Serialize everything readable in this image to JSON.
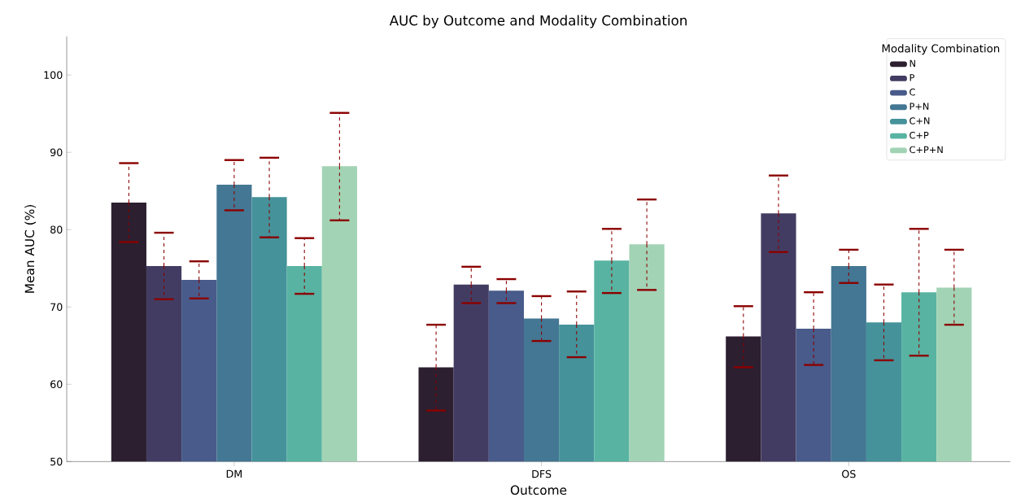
{
  "chart_data": {
    "type": "bar",
    "title": "AUC by Outcome and Modality Combination",
    "xlabel": "Outcome",
    "ylabel": "Mean AUC (%)",
    "legend_title": "Modality Combination",
    "categories": [
      "DM",
      "DFS",
      "OS"
    ],
    "series": [
      {
        "name": "N",
        "color": "#2b1f30",
        "values": [
          83.5,
          62.2,
          66.2
        ],
        "errors": [
          [
            78.4,
            88.6
          ],
          [
            56.6,
            67.7
          ],
          [
            62.2,
            70.1
          ]
        ]
      },
      {
        "name": "P",
        "color": "#433c62",
        "values": [
          75.3,
          72.9,
          82.1
        ],
        "errors": [
          [
            71.0,
            79.6
          ],
          [
            70.5,
            75.2
          ],
          [
            77.1,
            87.0
          ]
        ]
      },
      {
        "name": "C",
        "color": "#485b8a",
        "values": [
          73.5,
          72.1,
          67.2
        ],
        "errors": [
          [
            71.1,
            75.9
          ],
          [
            70.5,
            73.6
          ],
          [
            62.5,
            71.9
          ]
        ]
      },
      {
        "name": "P+N",
        "color": "#437793",
        "values": [
          85.8,
          68.5,
          75.3
        ],
        "errors": [
          [
            82.5,
            89.0
          ],
          [
            65.6,
            71.4
          ],
          [
            73.1,
            77.4
          ]
        ]
      },
      {
        "name": "C+N",
        "color": "#45929a",
        "values": [
          84.2,
          67.7,
          68.0
        ],
        "errors": [
          [
            79.0,
            89.3
          ],
          [
            63.5,
            72.0
          ],
          [
            63.1,
            72.9
          ]
        ]
      },
      {
        "name": "C+P",
        "color": "#58b3a2",
        "values": [
          75.3,
          76.0,
          71.9
        ],
        "errors": [
          [
            71.7,
            78.9
          ],
          [
            71.8,
            80.1
          ],
          [
            63.7,
            80.1
          ]
        ]
      },
      {
        "name": "C+P+N",
        "color": "#a2d3b5",
        "values": [
          88.2,
          78.1,
          72.5
        ],
        "errors": [
          [
            81.2,
            95.1
          ],
          [
            72.2,
            83.9
          ],
          [
            67.7,
            77.4
          ]
        ]
      }
    ],
    "ylim": [
      50,
      105
    ],
    "yticks": [
      50,
      60,
      70,
      80,
      90,
      100
    ],
    "grid": false,
    "legend": "top right"
  }
}
